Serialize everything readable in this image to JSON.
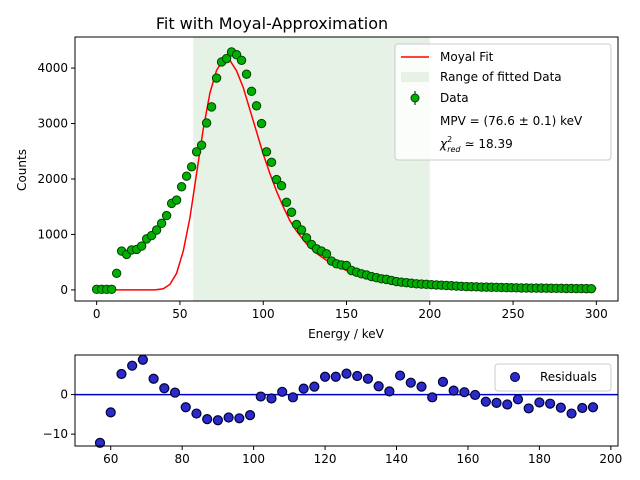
{
  "chart_data": [
    {
      "type": "scatter",
      "title": "Fit with Moyal-Approximation",
      "xlabel": "Energy / keV",
      "ylabel": "Counts",
      "xlim": [
        -13,
        313
      ],
      "ylim": [
        -200,
        4560
      ],
      "xticks": [
        0,
        50,
        100,
        150,
        200,
        250,
        300
      ],
      "yticks": [
        0,
        1000,
        2000,
        3000,
        4000
      ],
      "grid": false,
      "legend_position": "top-right",
      "legend": {
        "fit_label": "Moyal Fit",
        "range_label": "Range of fitted Data",
        "data_label": "Data",
        "mpv_text": "MPV = (76.6 ± 0.1) keV",
        "chi2_symbol": "χ",
        "chi2_sup": "2",
        "chi2_sub": "red",
        "chi2_value": "≃ 18.39"
      },
      "fit_range": [
        58,
        200
      ],
      "colors": {
        "fit": "#ff0000",
        "data_fill": "#00b000",
        "range": "#e5f2e5"
      },
      "series": [
        {
          "name": "Data",
          "x": [
            0,
            3,
            6,
            9,
            12,
            15,
            18,
            21,
            24,
            27,
            30,
            33,
            36,
            39,
            42,
            45,
            48,
            51,
            54,
            57,
            60,
            63,
            66,
            69,
            72,
            75,
            78,
            81,
            84,
            87,
            90,
            93,
            96,
            99,
            102,
            105,
            108,
            111,
            114,
            117,
            120,
            123,
            126,
            129,
            132,
            135,
            138,
            141,
            144,
            147,
            150,
            153,
            156,
            159,
            162,
            165,
            168,
            171,
            174,
            177,
            180,
            183,
            186,
            189,
            192,
            195,
            198,
            201,
            204,
            207,
            210,
            213,
            216,
            219,
            222,
            225,
            228,
            231,
            234,
            237,
            240,
            243,
            246,
            249,
            252,
            255,
            258,
            261,
            264,
            267,
            270,
            273,
            276,
            279,
            282,
            285,
            288,
            291,
            294,
            297
          ],
          "y": [
            10,
            10,
            10,
            10,
            300,
            700,
            640,
            720,
            730,
            790,
            920,
            980,
            1080,
            1200,
            1340,
            1560,
            1620,
            1860,
            2050,
            2220,
            2490,
            2610,
            3010,
            3300,
            3820,
            4110,
            4170,
            4290,
            4240,
            4140,
            3890,
            3580,
            3320,
            3000,
            2490,
            2300,
            1990,
            1880,
            1580,
            1400,
            1180,
            1080,
            940,
            820,
            740,
            700,
            650,
            520,
            470,
            450,
            440,
            350,
            320,
            290,
            270,
            240,
            220,
            200,
            190,
            170,
            150,
            140,
            130,
            120,
            110,
            105,
            100,
            95,
            90,
            85,
            80,
            75,
            70,
            65,
            60,
            58,
            55,
            52,
            50,
            48,
            46,
            44,
            42,
            40,
            38,
            36,
            35,
            34,
            33,
            32,
            31,
            30,
            29,
            28,
            27,
            26,
            25,
            24,
            23,
            22
          ]
        },
        {
          "name": "Moyal Fit",
          "x": [
            0,
            20,
            35,
            40,
            44,
            48,
            52,
            56,
            60,
            64,
            68,
            72,
            76,
            80,
            84,
            88,
            92,
            96,
            100,
            104,
            108,
            112,
            116,
            120,
            126,
            132,
            140,
            150,
            160,
            170,
            180,
            190,
            200,
            220,
            240,
            260,
            280,
            300
          ],
          "y": [
            0,
            0,
            0,
            20,
            100,
            300,
            700,
            1300,
            2100,
            2900,
            3550,
            3960,
            4150,
            4140,
            3950,
            3650,
            3250,
            2850,
            2450,
            2100,
            1780,
            1500,
            1250,
            1060,
            830,
            660,
            490,
            350,
            260,
            200,
            150,
            120,
            95,
            70,
            55,
            45,
            35,
            30
          ]
        }
      ]
    },
    {
      "type": "scatter",
      "xlim": [
        50,
        202
      ],
      "ylim": [
        -13,
        10
      ],
      "xticks": [
        60,
        80,
        100,
        120,
        140,
        160,
        180,
        200
      ],
      "yticks": [
        -10,
        0
      ],
      "grid": false,
      "legend_position": "top-right",
      "colors": {
        "points": "#2b2bcc",
        "zero_line": "#0000cc"
      },
      "series": [
        {
          "name": "Residuals",
          "x": [
            57,
            60,
            63,
            66,
            69,
            72,
            75,
            78,
            81,
            84,
            87,
            90,
            93,
            96,
            99,
            102,
            105,
            108,
            111,
            114,
            117,
            120,
            123,
            126,
            129,
            132,
            135,
            138,
            141,
            144,
            147,
            150,
            153,
            156,
            159,
            162,
            165,
            168,
            171,
            174,
            177,
            180,
            183,
            186,
            189,
            192,
            195
          ],
          "y": [
            -12.2,
            -4.5,
            5.2,
            7.3,
            8.8,
            4.0,
            1.6,
            0.5,
            -3.2,
            -4.8,
            -6.2,
            -6.5,
            -5.8,
            -6.0,
            -5.2,
            -0.5,
            -1.0,
            0.7,
            -0.7,
            1.5,
            2.0,
            4.5,
            4.5,
            5.3,
            4.7,
            4.0,
            2.1,
            0.8,
            4.8,
            3.0,
            2.0,
            -0.7,
            3.2,
            1.0,
            0.6,
            -0.1,
            -1.8,
            -2.1,
            -2.5,
            -1.2,
            -3.5,
            -2.0,
            -2.3,
            -3.3,
            -4.8,
            -3.4,
            -3.2
          ]
        }
      ]
    }
  ]
}
